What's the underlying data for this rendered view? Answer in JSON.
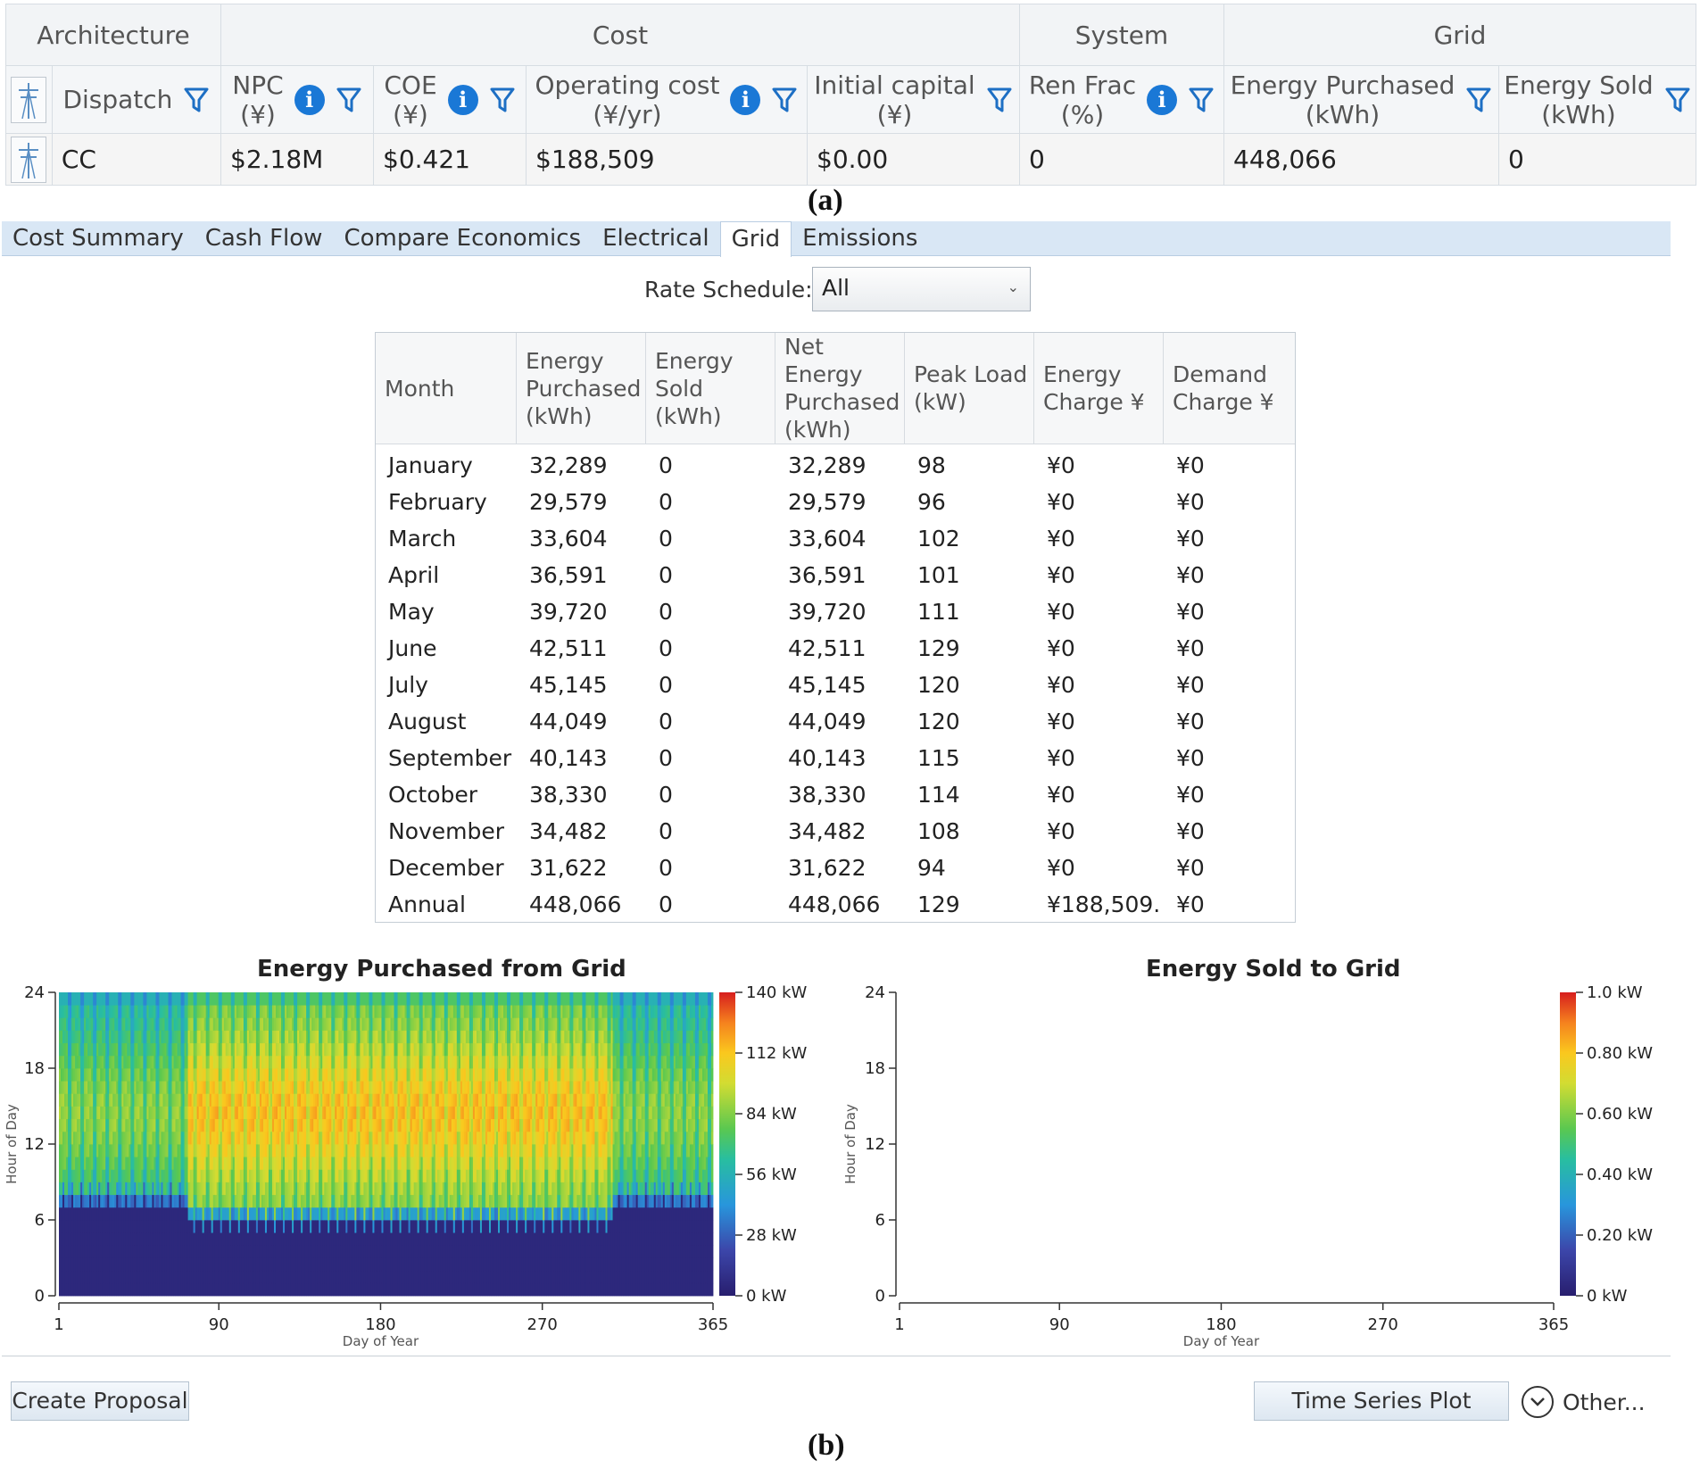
{
  "top_table": {
    "groups": [
      "Architecture",
      "Cost",
      "System",
      "Grid"
    ],
    "columns": [
      {
        "label_line1": "Dispatch",
        "label_line2": ""
      },
      {
        "label_line1": "NPC",
        "label_line2": "(¥)"
      },
      {
        "label_line1": "COE",
        "label_line2": "(¥)"
      },
      {
        "label_line1": "Operating cost",
        "label_line2": "(¥/yr)"
      },
      {
        "label_line1": "Initial capital",
        "label_line2": "(¥)"
      },
      {
        "label_line1": "Ren Frac",
        "label_line2": "(%)"
      },
      {
        "label_line1": "Energy Purchased",
        "label_line2": "(kWh)"
      },
      {
        "label_line1": "Energy Sold",
        "label_line2": "(kWh)"
      }
    ],
    "row": [
      "CC",
      "$2.18M",
      "$0.421",
      "$188,509",
      "$0.00",
      "0",
      "448,066",
      "0"
    ]
  },
  "caption_a": "(a)",
  "caption_b": "(b)",
  "tabs": [
    {
      "label": "Cost Summary",
      "active": false
    },
    {
      "label": "Cash Flow",
      "active": false
    },
    {
      "label": "Compare Economics",
      "active": false
    },
    {
      "label": "Electrical",
      "active": false
    },
    {
      "label": "Grid",
      "active": true
    },
    {
      "label": "Emissions",
      "active": false
    }
  ],
  "rate_schedule": {
    "label": "Rate Schedule:",
    "value": "All"
  },
  "monthly_table": {
    "headers": [
      [
        "Month"
      ],
      [
        "Energy",
        "Purchased",
        "(kWh)"
      ],
      [
        "Energy",
        "Sold",
        "(kWh)"
      ],
      [
        "Net",
        "Energy",
        "Purchased",
        "(kWh)"
      ],
      [
        "Peak Load",
        "(kW)"
      ],
      [
        "Energy",
        "Charge ¥"
      ],
      [
        "Demand",
        "Charge ¥"
      ]
    ],
    "rows": [
      [
        "January",
        "32,289",
        "0",
        "32,289",
        "98",
        "¥0",
        "¥0"
      ],
      [
        "February",
        "29,579",
        "0",
        "29,579",
        "96",
        "¥0",
        "¥0"
      ],
      [
        "March",
        "33,604",
        "0",
        "33,604",
        "102",
        "¥0",
        "¥0"
      ],
      [
        "April",
        "36,591",
        "0",
        "36,591",
        "101",
        "¥0",
        "¥0"
      ],
      [
        "May",
        "39,720",
        "0",
        "39,720",
        "111",
        "¥0",
        "¥0"
      ],
      [
        "June",
        "42,511",
        "0",
        "42,511",
        "129",
        "¥0",
        "¥0"
      ],
      [
        "July",
        "45,145",
        "0",
        "45,145",
        "120",
        "¥0",
        "¥0"
      ],
      [
        "August",
        "44,049",
        "0",
        "44,049",
        "120",
        "¥0",
        "¥0"
      ],
      [
        "September",
        "40,143",
        "0",
        "40,143",
        "115",
        "¥0",
        "¥0"
      ],
      [
        "October",
        "38,330",
        "0",
        "38,330",
        "114",
        "¥0",
        "¥0"
      ],
      [
        "November",
        "34,482",
        "0",
        "34,482",
        "108",
        "¥0",
        "¥0"
      ],
      [
        "December",
        "31,622",
        "0",
        "31,622",
        "94",
        "¥0",
        "¥0"
      ],
      [
        "Annual",
        "448,066",
        "0",
        "448,066",
        "129",
        "¥188,509.",
        "¥0"
      ]
    ]
  },
  "chart_data": [
    {
      "type": "heatmap",
      "title": "Energy Purchased from Grid",
      "xlabel": "Day of Year",
      "ylabel": "Hour of Day",
      "x_ticks": [
        "1",
        "90",
        "180",
        "270",
        "365"
      ],
      "y_ticks": [
        "0",
        "6",
        "12",
        "18",
        "24"
      ],
      "xlim": [
        1,
        365
      ],
      "ylim": [
        0,
        24
      ],
      "colorbar_ticks": [
        "0 kW",
        "28 kW",
        "56 kW",
        "84 kW",
        "112 kW",
        "140 kW"
      ],
      "colorbar_range": [
        0,
        140
      ],
      "profile": {
        "night_hours_kw": 5,
        "day_hours_start": 7,
        "day_hours_end": 23,
        "winter_day_kw": 80,
        "summer_day_kw": 105,
        "summer_days": [
          72,
          308
        ]
      }
    },
    {
      "type": "heatmap",
      "title": "Energy Sold to Grid",
      "xlabel": "Day of Year",
      "ylabel": "Hour of Day",
      "x_ticks": [
        "1",
        "90",
        "180",
        "270",
        "365"
      ],
      "y_ticks": [
        "0",
        "6",
        "12",
        "18",
        "24"
      ],
      "xlim": [
        1,
        365
      ],
      "ylim": [
        0,
        24
      ],
      "colorbar_ticks": [
        "0 kW",
        "0.20 kW",
        "0.40 kW",
        "0.60 kW",
        "0.80 kW",
        "1.0 kW"
      ],
      "colorbar_range": [
        0,
        1.0
      ],
      "values": "all zero"
    }
  ],
  "colors": {
    "tab_bar": "#d9e7f5",
    "info_icon": "#1a78d6",
    "filter_icon": "#1d6fc4",
    "heat_low": "#3c3f96",
    "heat_high": "#d7191c"
  },
  "buttons": {
    "create_proposal": "Create Proposal",
    "time_series_plot": "Time Series Plot",
    "other": "Other..."
  }
}
